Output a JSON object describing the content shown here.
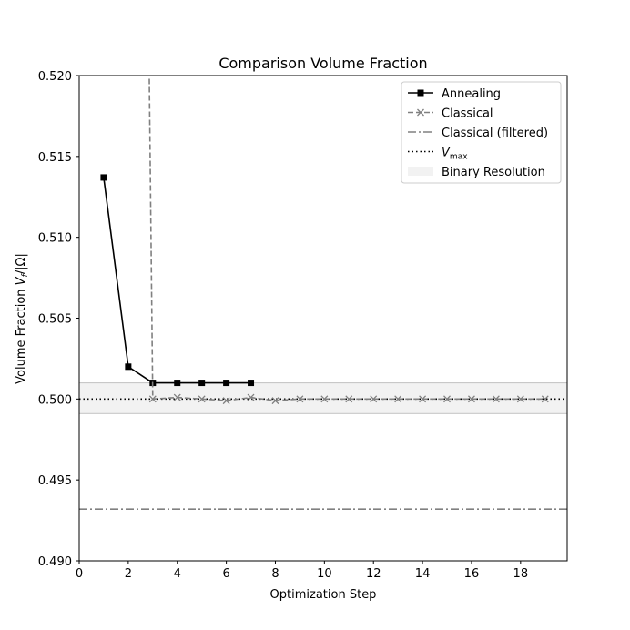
{
  "chart_data": {
    "type": "line",
    "title": "Comparison Volume Fraction",
    "xlabel": "Optimization Step",
    "ylabel_prefix": "Volume Fraction ",
    "ylabel_var": "V",
    "ylabel_sub": "f",
    "ylabel_suffix": "/|Ω|",
    "xlim": [
      0,
      19.9
    ],
    "ylim": [
      0.49,
      0.52
    ],
    "x_ticks": [
      0,
      2,
      4,
      6,
      8,
      10,
      12,
      14,
      16,
      18
    ],
    "x_tick_labels": [
      "0",
      "2",
      "4",
      "6",
      "8",
      "10",
      "12",
      "14",
      "16",
      "18"
    ],
    "y_ticks": [
      0.49,
      0.495,
      0.5,
      0.505,
      0.51,
      0.515,
      0.52
    ],
    "y_tick_labels": [
      "0.490",
      "0.495",
      "0.500",
      "0.505",
      "0.510",
      "0.515",
      "0.520"
    ],
    "grid": false,
    "legend_position": "top-right",
    "series": [
      {
        "name": "Annealing",
        "style": "solid-square",
        "color": "#000000",
        "x": [
          1,
          2,
          3,
          4,
          5,
          6,
          7
        ],
        "y": [
          0.5137,
          0.502,
          0.501,
          0.501,
          0.501,
          0.501,
          0.501
        ]
      },
      {
        "name": "Classical",
        "style": "dashed-x",
        "color": "#808080",
        "x": [
          2.75,
          3,
          4,
          5,
          6,
          7,
          8,
          9,
          10,
          11,
          12,
          13,
          14,
          15,
          16,
          17,
          18,
          19
        ],
        "y": [
          0.535,
          0.5,
          0.5001,
          0.5,
          0.4999,
          0.5001,
          0.4999,
          0.5,
          0.5,
          0.5,
          0.5,
          0.5,
          0.5,
          0.5,
          0.5,
          0.5,
          0.5,
          0.5
        ],
        "marker_start_index": 1
      }
    ],
    "hlines": [
      {
        "name": "Classical (filtered)",
        "style": "dashdot",
        "color": "#808080",
        "y": 0.4932
      },
      {
        "name": "V",
        "name_sub": "max",
        "style": "dotted",
        "color": "#000000",
        "y": 0.5
      }
    ],
    "band": {
      "name": "Binary Resolution",
      "y0": 0.4991,
      "y1": 0.501,
      "color": "#f2f2f2",
      "edge": "#c8c8c8"
    }
  }
}
